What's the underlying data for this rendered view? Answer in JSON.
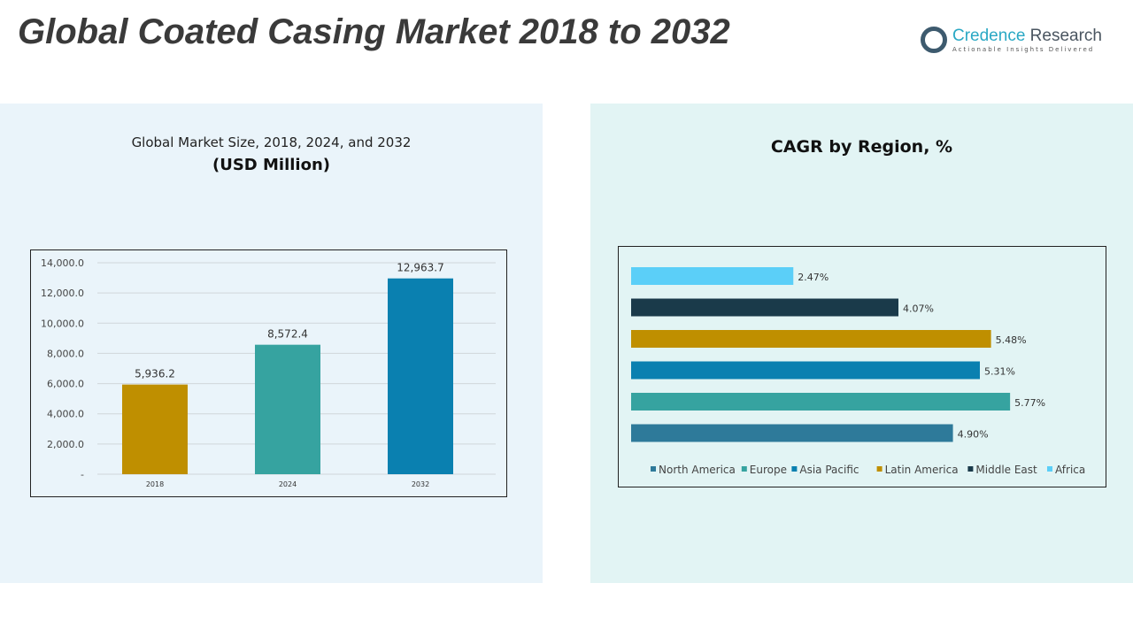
{
  "title": "Global Coated Casing Market 2018 to 2032",
  "logo": {
    "name1": "Credence",
    "name2": "Research",
    "tagline": "Actionable Insights Delivered"
  },
  "chart_data": [
    {
      "type": "bar",
      "title": "Global Market Size, 2018, 2024, and 2032",
      "subtitle": "(USD Million)",
      "categories": [
        "2018",
        "2024",
        "2032"
      ],
      "values": [
        5936.2,
        8572.4,
        12963.7
      ],
      "labels": [
        "5,936.2",
        "8,572.4",
        "12,963.7"
      ],
      "colors": [
        "#bf8f00",
        "#36a3a0",
        "#0a80b0"
      ],
      "yticks": [
        "-",
        "2,000.0",
        "4,000.0",
        "6,000.0",
        "8,000.0",
        "10,000.0",
        "12,000.0",
        "14,000.0"
      ],
      "ylim": [
        0,
        14000
      ],
      "grid": true
    },
    {
      "type": "bar",
      "orientation": "horizontal",
      "title": "CAGR by Region, %",
      "categories": [
        "North America",
        "Europe",
        "Asia Pacific",
        "Latin America",
        "Middle East",
        "Africa"
      ],
      "values": [
        4.9,
        5.77,
        5.31,
        5.48,
        4.07,
        2.47
      ],
      "labels": [
        "4.90%",
        "5.77%",
        "5.31%",
        "5.48%",
        "4.07%",
        "2.47%"
      ],
      "colors": [
        "#2e7a9a",
        "#36a3a0",
        "#0a80b0",
        "#bf8f00",
        "#1a3a4a",
        "#5bcff8"
      ],
      "legend": "bottom",
      "xlim": [
        0,
        7.2
      ]
    }
  ]
}
